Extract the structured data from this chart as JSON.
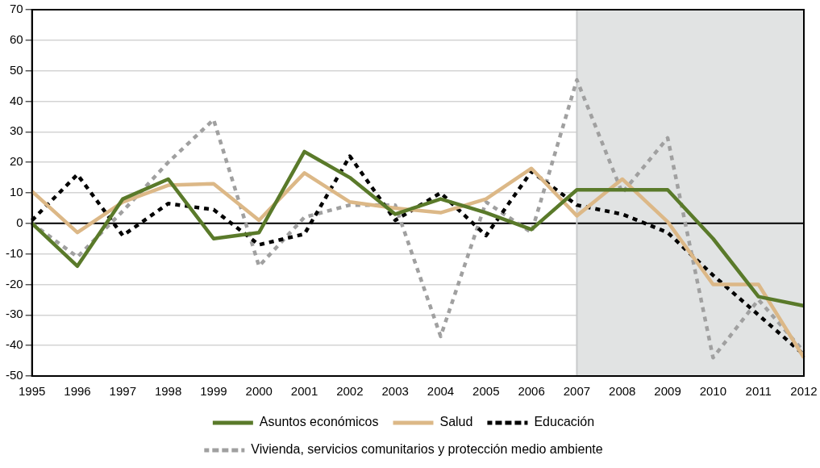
{
  "chart_data": {
    "type": "line",
    "categories": [
      "1995",
      "1996",
      "1997",
      "1998",
      "1999",
      "2000",
      "2001",
      "2002",
      "2003",
      "2004",
      "2005",
      "2006",
      "2007",
      "2008",
      "2009",
      "2010",
      "2011",
      "2012"
    ],
    "series": [
      {
        "name": "Asuntos económicos",
        "color": "#5a7a2a",
        "line_style": "solid",
        "values": [
          0,
          -14,
          8,
          14.5,
          -5,
          -3,
          23.5,
          15,
          3,
          8,
          3.5,
          -2,
          11,
          11,
          11,
          -5,
          -24,
          -27
        ]
      },
      {
        "name": "Salud",
        "color": "#dcb887",
        "line_style": "solid",
        "values": [
          10.5,
          -3,
          7,
          12.5,
          13,
          1,
          16.5,
          7,
          5,
          3.5,
          8,
          18,
          2.5,
          14.5,
          0.5,
          -20,
          -20,
          -44
        ]
      },
      {
        "name": "Educación",
        "color": "#000000",
        "line_style": "dotted",
        "values": [
          1,
          16,
          -4,
          6.5,
          4.5,
          -7,
          -3.5,
          22,
          1,
          10,
          -4,
          17,
          6,
          3,
          -3,
          -17,
          -30,
          -43
        ]
      },
      {
        "name": "Vivienda, servicios comunitarios y protección medio ambiente",
        "color": "#a0a0a0",
        "line_style": "dotted",
        "values": [
          0,
          -11,
          4,
          20,
          34,
          -14,
          2,
          6,
          6,
          -37,
          7,
          -3,
          47,
          10,
          28,
          -44,
          -25,
          -42
        ]
      }
    ],
    "ylim": [
      -50,
      70
    ],
    "yticks": [
      -50,
      -40,
      -30,
      -20,
      -10,
      0,
      10,
      20,
      30,
      40,
      50,
      60,
      70
    ],
    "grid": "y",
    "legend": "bottom",
    "marker": "none",
    "ref_lines": [
      {
        "axis": "y",
        "value": 0,
        "color": "#000000"
      },
      {
        "axis": "x",
        "value": "2007",
        "color": "#c8cacb"
      }
    ],
    "bands": [
      {
        "axis": "x",
        "from": "2007",
        "to": "2012",
        "color": "#e1e3e3"
      }
    ]
  }
}
